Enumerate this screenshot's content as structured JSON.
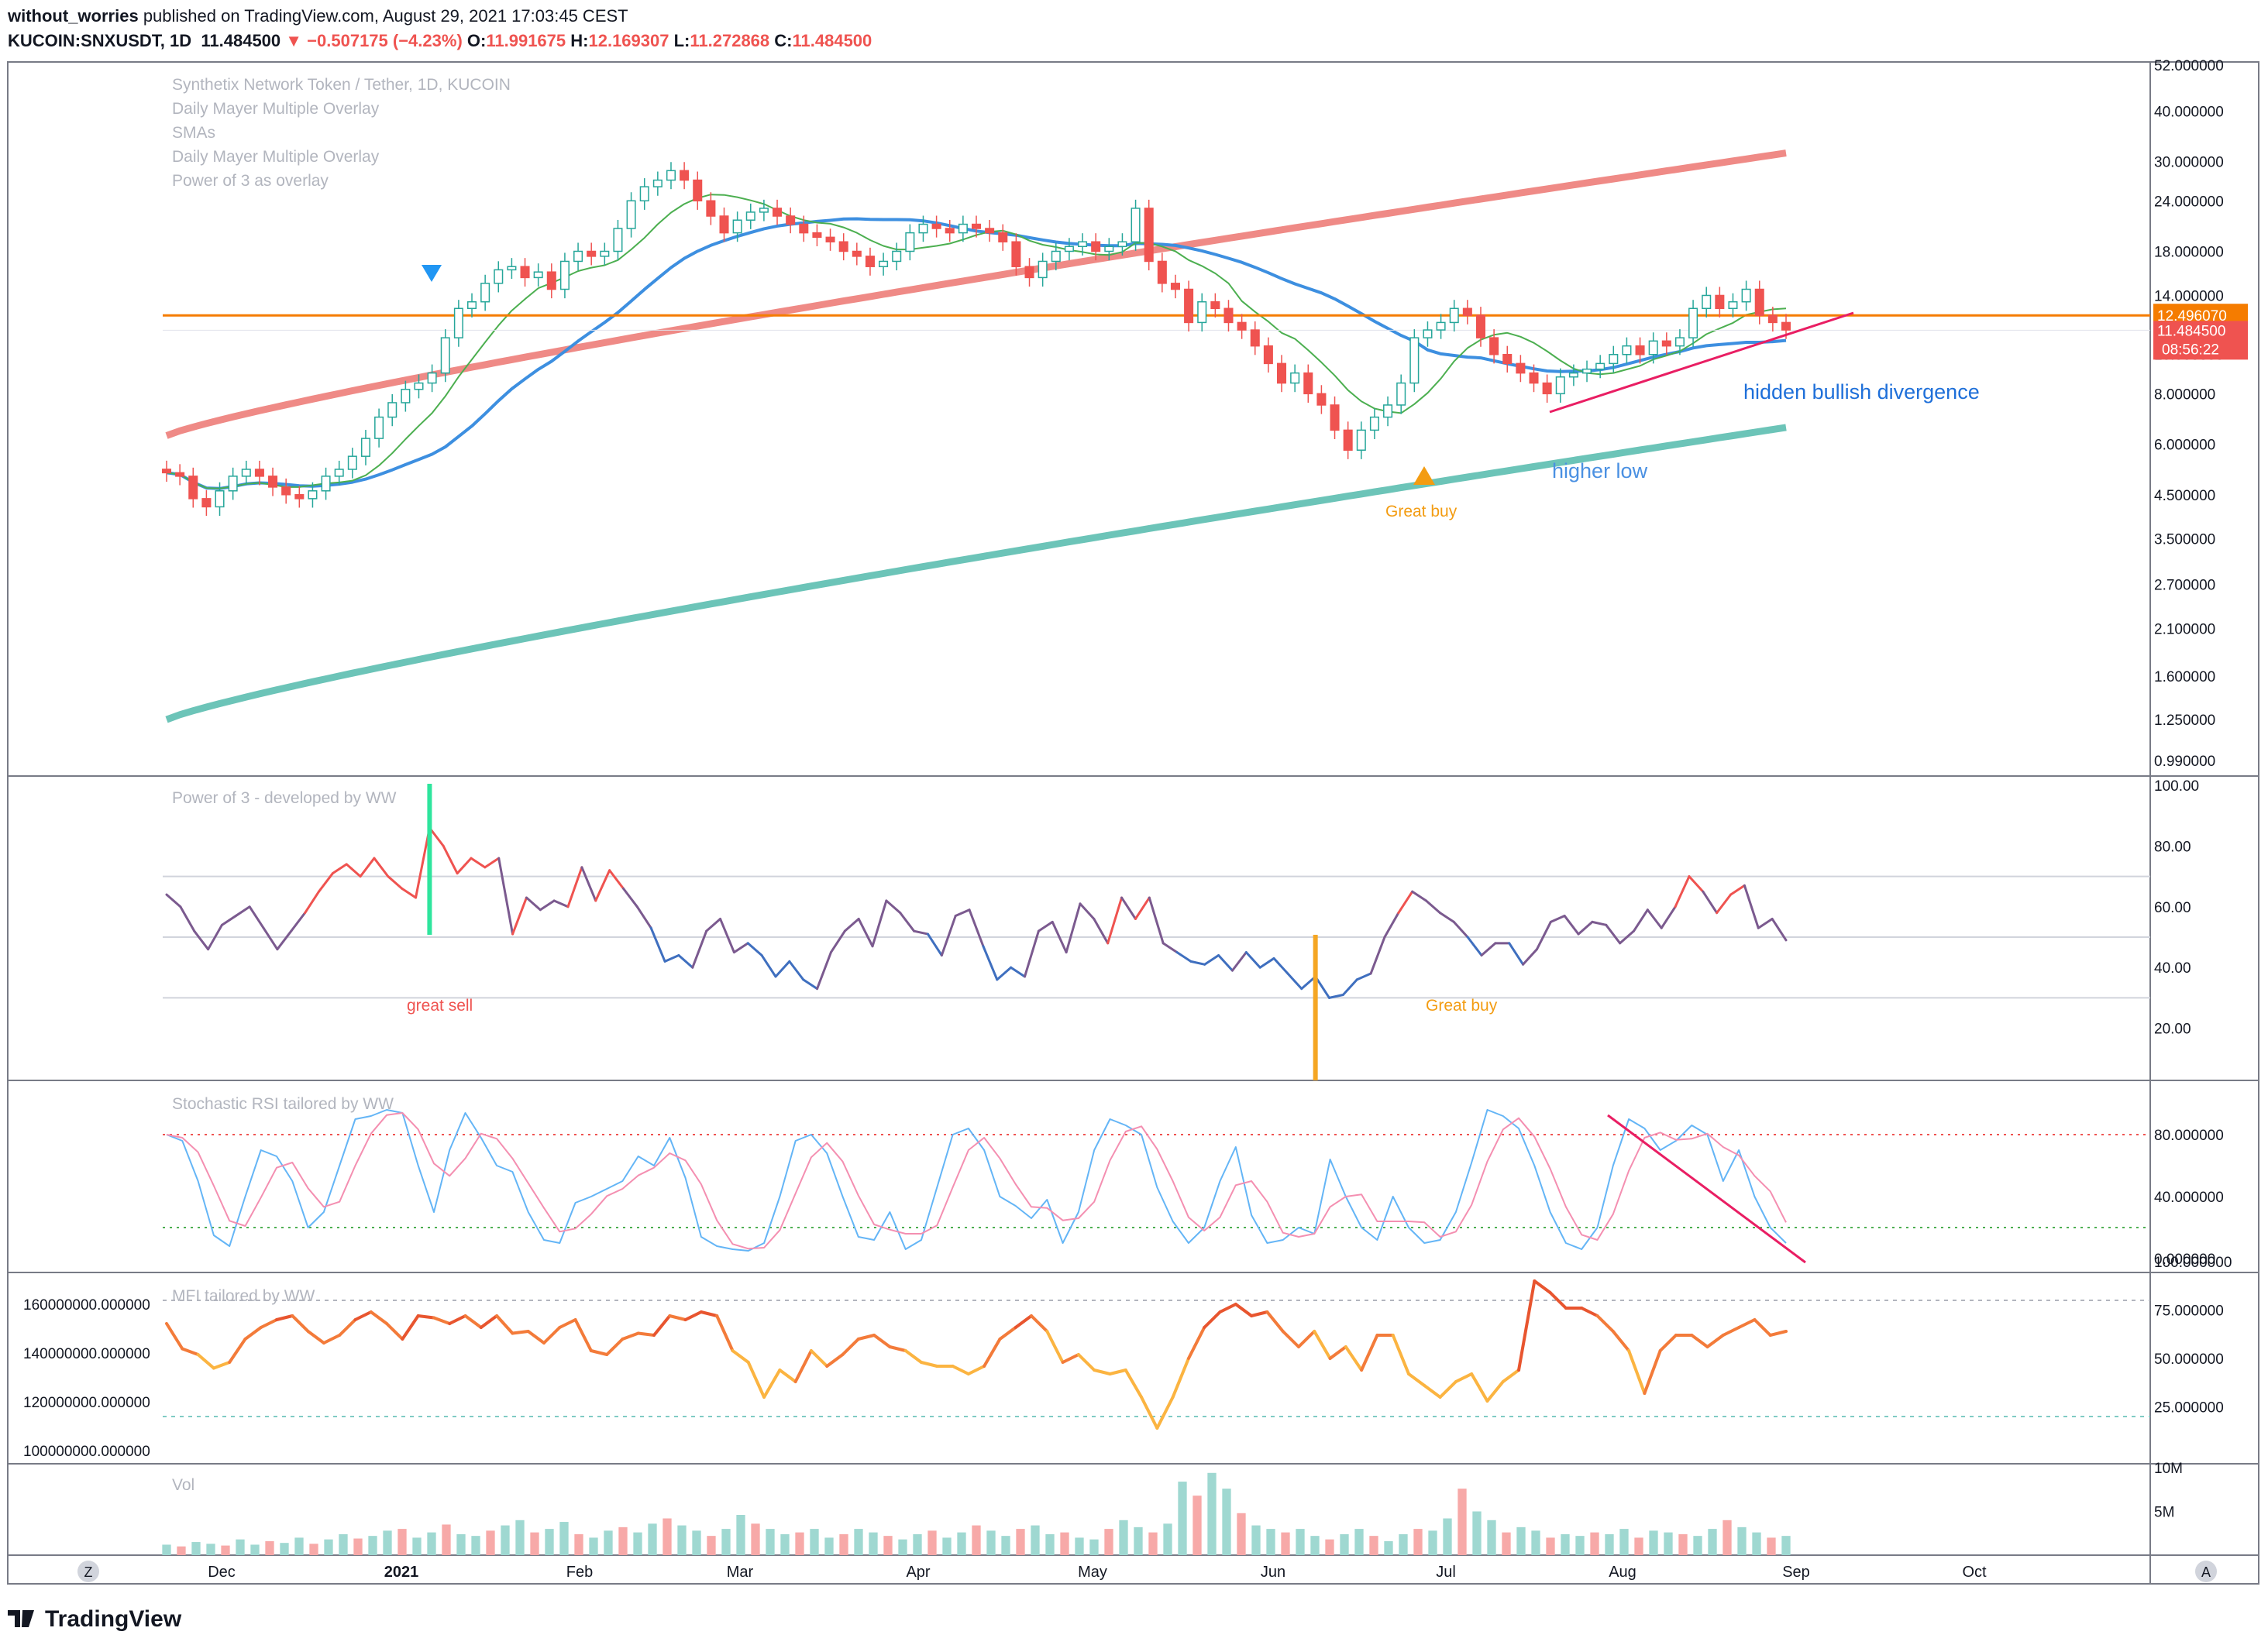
{
  "header": {
    "user": "without_worries",
    "published": "published on TradingView.com, August 29, 2021 17:03:45 CEST",
    "symbol": "KUCOIN:SNXUSDT, 1D",
    "last": "11.484500",
    "change": "▼ −0.507175 (−4.23%)",
    "o_label": "O:",
    "o": "11.991675",
    "h_label": "H:",
    "h": "12.169307",
    "l_label": "L:",
    "l": "11.272868",
    "c_label": "C:",
    "c": "11.484500"
  },
  "footer": {
    "brand": "TradingView"
  },
  "colors": {
    "up": "#26a69a",
    "down": "#ef5350",
    "mayer_top": "#ef8a86",
    "mayer_bottom": "#6cc4b8",
    "sma_blue": "#3d8fe0",
    "ema_green": "#4caf50",
    "ema_red": "#ef5350",
    "level": "#f57c00",
    "trend": "#e91e63",
    "annot_blue": "#1e6fd9",
    "annot_orange": "#f39c12"
  },
  "chart_data": [
    {
      "type": "candlestick",
      "panel": "price",
      "legend": [
        "Synthetix Network Token / Tether, 1D, KUCOIN",
        "Daily Mayer Multiple Overlay",
        "SMAs",
        "Daily Mayer Multiple Overlay",
        "Power of 3 as overlay"
      ],
      "scale": "log",
      "y_ticks": [
        "52.000000",
        "40.000000",
        "30.000000",
        "24.000000",
        "18.000000",
        "14.000000",
        "10.000000",
        "8.000000",
        "6.000000",
        "4.500000",
        "3.500000",
        "2.700000",
        "2.100000",
        "1.600000",
        "1.250000",
        "0.990000"
      ],
      "x_ticks": [
        "Dec",
        "2021",
        "Feb",
        "Mar",
        "Apr",
        "May",
        "Jun",
        "Jul",
        "Aug",
        "Sep",
        "Oct"
      ],
      "price_level": 12.49607,
      "price_level_label": "12.496070",
      "last_price_label": "11.484500",
      "countdown_label": "08:56:22",
      "annotations": [
        "hidden bullish divergence",
        "higher low",
        "Great buy"
      ],
      "close": [
        5.1,
        5.0,
        4.4,
        4.2,
        4.6,
        5.0,
        5.2,
        5.0,
        4.7,
        4.5,
        4.4,
        4.6,
        5.0,
        5.2,
        5.6,
        6.2,
        7.0,
        7.6,
        8.2,
        8.5,
        9.0,
        11.0,
        13.0,
        13.5,
        15.0,
        16.2,
        16.5,
        15.5,
        16.0,
        14.5,
        17.0,
        18.0,
        17.5,
        18.0,
        20.5,
        24.0,
        26.0,
        27.0,
        28.5,
        27.0,
        24.0,
        22.0,
        20.0,
        21.5,
        22.5,
        23.0,
        22.0,
        21.0,
        20.0,
        19.5,
        19.0,
        18.0,
        17.5,
        16.5,
        17.0,
        18.0,
        20.0,
        21.0,
        20.5,
        20.0,
        21.0,
        20.5,
        20.0,
        19.0,
        16.5,
        15.5,
        17.0,
        18.0,
        18.5,
        19.0,
        18.0,
        18.5,
        19.0,
        23.0,
        17.0,
        15.0,
        14.5,
        12.0,
        13.5,
        13.0,
        12.0,
        11.5,
        10.5,
        9.5,
        8.5,
        9.0,
        8.0,
        7.5,
        6.5,
        5.8,
        6.5,
        7.0,
        7.5,
        8.5,
        11.0,
        11.5,
        12.0,
        13.0,
        12.5,
        11.0,
        10.0,
        9.5,
        9.0,
        8.5,
        8.0,
        8.8,
        9.0,
        9.2,
        9.5,
        10.0,
        10.5,
        10.0,
        10.8,
        10.5,
        11.0,
        13.0,
        14.0,
        13.0,
        13.5,
        14.5,
        12.5,
        12.0,
        11.5
      ],
      "mayer_top": [
        6.3,
        31.5
      ],
      "mayer_bottom": [
        1.25,
        6.6
      ]
    },
    {
      "type": "line",
      "panel": "power_of_3",
      "legend": "Power of 3 - developed by WW",
      "y_ticks": [
        "100.00",
        "80.00",
        "60.00",
        "40.00",
        "20.00"
      ],
      "levels": [
        70,
        50,
        30
      ],
      "annotations": [
        "great sell",
        "Great buy"
      ],
      "values": [
        64,
        60,
        52,
        46,
        54,
        57,
        60,
        53,
        46,
        52,
        58,
        65,
        71,
        74,
        70,
        76,
        70,
        66,
        63,
        86,
        80,
        71,
        76,
        73,
        76,
        51,
        63,
        59,
        62,
        60,
        73,
        62,
        72,
        66,
        60,
        53,
        42,
        44,
        40,
        52,
        56,
        45,
        48,
        44,
        37,
        42,
        36,
        33,
        45,
        52,
        56,
        47,
        62,
        58,
        52,
        51,
        44,
        57,
        59,
        47,
        36,
        40,
        37,
        52,
        55,
        45,
        61,
        56,
        48,
        63,
        56,
        63,
        48,
        45,
        42,
        41,
        44,
        39,
        45,
        40,
        43,
        38,
        33,
        37,
        30,
        31,
        36,
        38,
        50,
        58,
        65,
        62,
        58,
        55,
        50,
        44,
        48,
        48,
        41,
        46,
        55,
        57,
        51,
        55,
        54,
        48,
        52,
        59,
        53,
        60,
        70,
        65,
        58,
        64,
        67,
        53,
        56,
        49
      ],
      "signal_markers": [
        {
          "at": 19,
          "dir": "sell"
        },
        {
          "at": 83,
          "dir": "buy"
        }
      ]
    },
    {
      "type": "line",
      "panel": "stoch_rsi",
      "legend": "Stochastic RSI tailored by WW",
      "y_ticks": [
        "80.000000",
        "40.000000",
        "0.000000"
      ],
      "levels": [
        80,
        20
      ],
      "k": [
        80,
        76,
        50,
        15,
        8,
        40,
        70,
        66,
        50,
        20,
        30,
        60,
        90,
        92,
        96,
        94,
        60,
        30,
        70,
        94,
        78,
        60,
        56,
        30,
        12,
        10,
        36,
        40,
        45,
        50,
        66,
        60,
        78,
        52,
        14,
        8,
        6,
        5,
        10,
        40,
        76,
        80,
        68,
        40,
        14,
        12,
        30,
        6,
        12,
        46,
        80,
        84,
        70,
        40,
        34,
        26,
        38,
        10,
        30,
        70,
        90,
        86,
        80,
        46,
        24,
        10,
        20,
        50,
        72,
        28,
        10,
        12,
        20,
        16,
        64,
        40,
        20,
        12,
        40,
        20,
        10,
        12,
        30,
        62,
        96,
        92,
        84,
        60,
        30,
        10,
        6,
        20,
        60,
        90,
        84,
        70,
        76,
        86,
        80,
        50,
        70,
        40,
        20,
        10
      ]
    },
    {
      "type": "line",
      "panel": "mfi",
      "legend": "MFI tailored by WW",
      "y_ticks": [
        "100.000000",
        "75.000000",
        "50.000000",
        "25.000000"
      ],
      "left_ticks": [
        "160000000.000000",
        "140000000.000000",
        "120000000.000000",
        "100000000.000000"
      ],
      "levels": [
        80,
        20
      ],
      "values": [
        68,
        55,
        52,
        45,
        48,
        60,
        66,
        70,
        72,
        64,
        58,
        62,
        70,
        74,
        68,
        60,
        72,
        71,
        68,
        72,
        66,
        72,
        63,
        64,
        58,
        66,
        70,
        54,
        52,
        60,
        63,
        62,
        72,
        70,
        74,
        72,
        54,
        48,
        30,
        44,
        38,
        54,
        46,
        52,
        60,
        62,
        56,
        54,
        48,
        46,
        46,
        42,
        46,
        60,
        66,
        72,
        64,
        48,
        52,
        44,
        42,
        44,
        30,
        14,
        30,
        50,
        66,
        74,
        78,
        72,
        74,
        64,
        56,
        64,
        50,
        56,
        44,
        62,
        62,
        42,
        36,
        30,
        38,
        42,
        28,
        38,
        44,
        90,
        84,
        76,
        76,
        72,
        64,
        54,
        32,
        54,
        62,
        62,
        56,
        62,
        66,
        70,
        62,
        64
      ]
    },
    {
      "type": "bar",
      "panel": "volume",
      "legend": "Vol",
      "y_ticks": [
        "10M",
        "5M"
      ],
      "values": [
        1.2,
        1.0,
        1.5,
        1.3,
        1.1,
        1.8,
        1.2,
        1.6,
        1.4,
        2.0,
        1.3,
        1.8,
        2.4,
        1.9,
        2.2,
        2.8,
        3.0,
        2.0,
        2.6,
        3.5,
        2.4,
        2.2,
        2.8,
        3.4,
        4.0,
        2.6,
        3.0,
        3.8,
        2.4,
        2.0,
        2.8,
        3.2,
        2.6,
        3.6,
        4.2,
        3.4,
        2.8,
        2.2,
        3.0,
        4.6,
        3.6,
        3.0,
        2.4,
        2.6,
        3.0,
        2.0,
        2.4,
        3.0,
        2.6,
        2.2,
        1.8,
        2.4,
        2.8,
        2.0,
        2.6,
        3.4,
        2.8,
        2.2,
        3.0,
        3.4,
        2.4,
        2.6,
        2.0,
        1.8,
        3.0,
        4.0,
        3.2,
        2.6,
        3.6,
        8.4,
        6.8,
        9.4,
        7.6,
        4.8,
        3.4,
        3.0,
        2.6,
        3.0,
        2.2,
        1.8,
        2.4,
        3.0,
        2.2,
        1.6,
        2.4,
        3.0,
        2.8,
        4.2,
        7.6,
        5.0,
        4.0,
        2.6,
        3.2,
        2.8,
        2.0,
        2.4,
        2.2,
        2.6,
        2.4,
        3.0,
        2.0,
        2.8,
        2.6,
        2.4,
        2.2,
        3.0,
        4.0,
        3.2,
        2.6,
        2.0,
        2.2
      ]
    }
  ]
}
